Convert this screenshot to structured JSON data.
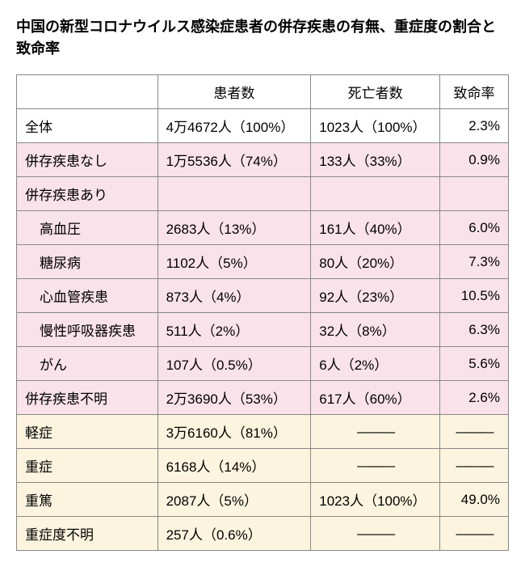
{
  "title": "中国の新型コロナウイルス感染症患者の併存疾患の有無、重症度の割合と致命率",
  "headers": {
    "col1": "",
    "col2": "患者数",
    "col3": "死亡者数",
    "col4": "致命率"
  },
  "rows": [
    {
      "label": "全体",
      "patients": "4万4672人（100%）",
      "deaths": "1023人（100%）",
      "rate": "2.3%",
      "bg": "white",
      "indent": false
    },
    {
      "label": "併存疾患なし",
      "patients": "1万5536人（74%）",
      "deaths": "133人（33%）",
      "rate": "0.9%",
      "bg": "pink",
      "indent": false
    },
    {
      "label": "併存疾患あり",
      "patients": "",
      "deaths": "",
      "rate": "",
      "bg": "pink",
      "indent": false
    },
    {
      "label": "高血圧",
      "patients": "2683人（13%）",
      "deaths": "161人（40%）",
      "rate": "6.0%",
      "bg": "pink",
      "indent": true
    },
    {
      "label": "糖尿病",
      "patients": "1102人（5%）",
      "deaths": "80人（20%）",
      "rate": "7.3%",
      "bg": "pink",
      "indent": true
    },
    {
      "label": "心血管疾患",
      "patients": "873人（4%）",
      "deaths": "92人（23%）",
      "rate": "10.5%",
      "bg": "pink",
      "indent": true
    },
    {
      "label": "慢性呼吸器疾患",
      "patients": "511人（2%）",
      "deaths": "32人（8%）",
      "rate": "6.3%",
      "bg": "pink",
      "indent": true
    },
    {
      "label": "がん",
      "patients": "107人（0.5%）",
      "deaths": "6人（2%）",
      "rate": "5.6%",
      "bg": "pink",
      "indent": true
    },
    {
      "label": "併存疾患不明",
      "patients": "2万3690人（53%）",
      "deaths": "617人（60%）",
      "rate": "2.6%",
      "bg": "pink",
      "indent": false
    },
    {
      "label": "軽症",
      "patients": "3万6160人（81%）",
      "deaths": "———",
      "rate": "———",
      "bg": "yellow",
      "indent": false,
      "dash": true
    },
    {
      "label": "重症",
      "patients": "6168人（14%）",
      "deaths": "———",
      "rate": "———",
      "bg": "yellow",
      "indent": false,
      "dash": true
    },
    {
      "label": "重篤",
      "patients": "2087人（5%）",
      "deaths": "1023人（100%）",
      "rate": "49.0%",
      "bg": "yellow",
      "indent": false
    },
    {
      "label": "重症度不明",
      "patients": "257人（0.6%）",
      "deaths": "———",
      "rate": "———",
      "bg": "yellow",
      "indent": false,
      "dash": true
    }
  ],
  "colors": {
    "pink": "#f9e2e9",
    "yellow": "#fcf4de",
    "white": "#ffffff",
    "border": "#888888",
    "text": "#000000"
  }
}
